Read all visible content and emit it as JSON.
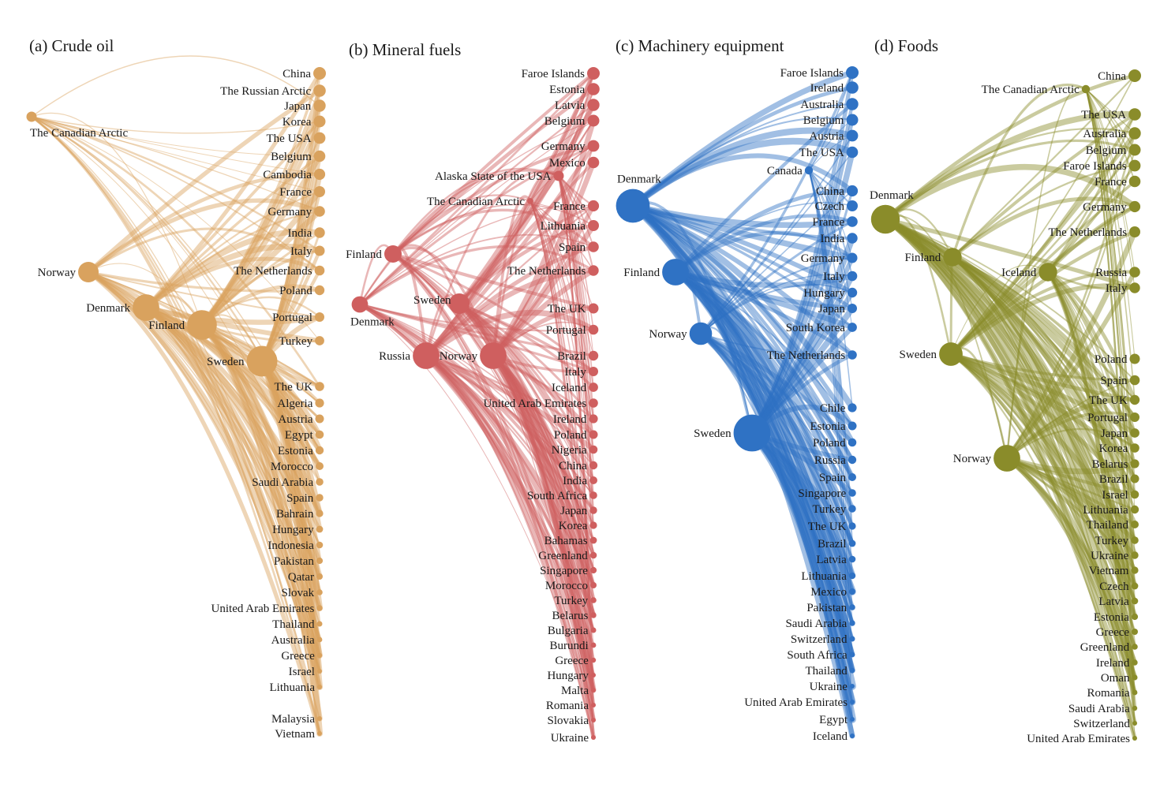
{
  "panels": [
    {
      "id": "a",
      "title": "(a) Crude oil",
      "color": "#d9a25e",
      "sources": [
        {
          "name": "The Canadian Arctic",
          "size": 1
        },
        {
          "name": "Norway",
          "size": 2
        },
        {
          "name": "Denmark",
          "size": 2.6
        },
        {
          "name": "Finland",
          "size": 2.9
        },
        {
          "name": "Sweden",
          "size": 3
        }
      ],
      "targets": [
        "China",
        "The Russian Arctic",
        "Japan",
        "Korea",
        "The USA",
        "Belgium",
        "Cambodia",
        "France",
        "Germany",
        "India",
        "Italy",
        "The Netherlands",
        "Poland",
        "Portugal",
        "Turkey",
        "The UK",
        "Algeria",
        "Austria",
        "Egypt",
        "Estonia",
        "Morocco",
        "Saudi Arabia",
        "Spain",
        "Bahrain",
        "Hungary",
        "Indonesia",
        "Pakistan",
        "Qatar",
        "Slovak",
        "United Arab Emirates",
        "Thailand",
        "Australia",
        "Greece",
        "Israel",
        "Lithuania",
        "Malaysia",
        "Vietnam"
      ]
    },
    {
      "id": "b",
      "title": "(b) Mineral fuels",
      "color": "#cf5f5f",
      "sources": [
        {
          "name": "Alaska State of the USA",
          "size": 1
        },
        {
          "name": "The Canadian Arctic",
          "size": 0.6
        },
        {
          "name": "Finland",
          "size": 1.7
        },
        {
          "name": "Denmark",
          "size": 1.6
        },
        {
          "name": "Sweden",
          "size": 2
        },
        {
          "name": "Russia",
          "size": 2.6
        },
        {
          "name": "Norway",
          "size": 2.6
        }
      ],
      "targets": [
        "Faroe Islands",
        "Estonia",
        "Latvia",
        "Belgium",
        "Germany",
        "Mexico",
        "France",
        "Lithuania",
        "Spain",
        "The Netherlands",
        "The UK",
        "Portugal",
        "Brazil",
        "Italy",
        "Iceland",
        "United Arab Emirates",
        "Ireland",
        "Poland",
        "Nigeria",
        "China",
        "India",
        "South Africa",
        "Japan",
        "Korea",
        "Bahamas",
        "Greenland",
        "Singapore",
        "Morocco",
        "Turkey",
        "Belarus",
        "Bulgaria",
        "Burundi",
        "Greece",
        "Hungary",
        "Malta",
        "Romania",
        "Slovakia",
        "Ukraine"
      ]
    },
    {
      "id": "c",
      "title": "(c) Machinery equipment",
      "color": "#2f72c4",
      "sources": [
        {
          "name": "Canada",
          "size": 0.8
        },
        {
          "name": "Denmark",
          "size": 3.3
        },
        {
          "name": "Finland",
          "size": 2.6
        },
        {
          "name": "Norway",
          "size": 2.2
        },
        {
          "name": "Sweden",
          "size": 3.6
        }
      ],
      "targets": [
        "Faroe Islands",
        "Ireland",
        "Australia",
        "Belgium",
        "Austria",
        "The USA",
        "China",
        "Czech",
        "France",
        "India",
        "Germany",
        "Italy",
        "Hungary",
        "Japan",
        "South Korea",
        "The Netherlands",
        "Chile",
        "Estonia",
        "Poland",
        "Russia",
        "Spain",
        "Singapore",
        "Turkey",
        "The UK",
        "Brazil",
        "Latvia",
        "Lithuania",
        "Mexico",
        "Pakistan",
        "Saudi Arabia",
        "Switzerland",
        "South Africa",
        "Thailand",
        "Ukraine",
        "United Arab Emirates",
        "Egypt",
        "Iceland"
      ]
    },
    {
      "id": "d",
      "title": "(d) Foods",
      "color": "#8a8c2a",
      "sources": [
        {
          "name": "The Canadian Arctic",
          "size": 0.8
        },
        {
          "name": "Denmark",
          "size": 2.8
        },
        {
          "name": "Finland",
          "size": 1.8
        },
        {
          "name": "Iceland",
          "size": 1.8
        },
        {
          "name": "Sweden",
          "size": 2.3
        },
        {
          "name": "Norway",
          "size": 2.6
        }
      ],
      "targets": [
        "China",
        "The USA",
        "Australia",
        "Belgium",
        "Faroe Islands",
        "France",
        "Germany",
        "The Netherlands",
        "Russia",
        "Italy",
        "Poland",
        "Spain",
        "The UK",
        "Portugal",
        "Japan",
        "Korea",
        "Belarus",
        "Brazil",
        "Israel",
        "Lithuania",
        "Thailand",
        "Turkey",
        "Ukraine",
        "Vietnam",
        "Czech",
        "Latvia",
        "Estonia",
        "Greece",
        "Greenland",
        "Ireland",
        "Oman",
        "Romania",
        "Saudi Arabia",
        "Switzerland",
        "United Arab Emirates"
      ]
    }
  ]
}
